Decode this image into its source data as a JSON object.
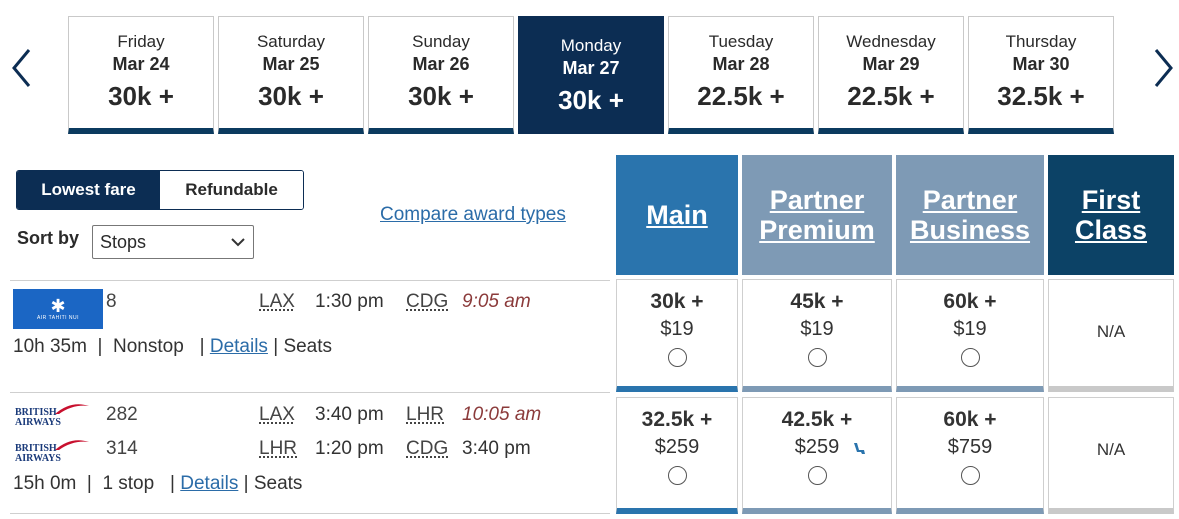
{
  "dates": [
    {
      "dow": "Friday",
      "date": "Mar 24",
      "points": "30k +"
    },
    {
      "dow": "Saturday",
      "date": "Mar 25",
      "points": "30k +"
    },
    {
      "dow": "Sunday",
      "date": "Mar 26",
      "points": "30k +"
    },
    {
      "dow": "Monday",
      "date": "Mar 27",
      "points": "30k +"
    },
    {
      "dow": "Tuesday",
      "date": "Mar 28",
      "points": "22.5k +"
    },
    {
      "dow": "Wednesday",
      "date": "Mar 29",
      "points": "22.5k +"
    },
    {
      "dow": "Thursday",
      "date": "Mar 30",
      "points": "32.5k +"
    }
  ],
  "selected_index": 3,
  "toggle": {
    "lowest": "Lowest fare",
    "refundable": "Refundable"
  },
  "sort": {
    "label": "Sort by",
    "value": "Stops"
  },
  "compare_link": "Compare award types",
  "cabins": {
    "main": "Main",
    "partner_premium": [
      "Partner",
      "Premium"
    ],
    "partner_business": [
      "Partner",
      "Business"
    ],
    "first_class": [
      "First",
      "Class"
    ]
  },
  "flights": [
    {
      "airline": "Air Tahiti Nui",
      "logo_text": "AIR TAHITI NUI",
      "segments": [
        {
          "flight": "8",
          "from": "LAX",
          "dep": "1:30 pm",
          "to": "CDG",
          "arr": "9:05 am"
        }
      ],
      "duration": "10h 35m",
      "stops": "Nonstop",
      "details": "Details",
      "seats": "Seats",
      "fares": {
        "main": {
          "points": "30k +",
          "cash": "$19"
        },
        "partner_premium": {
          "points": "45k +",
          "cash": "$19"
        },
        "partner_business": {
          "points": "60k +",
          "cash": "$19"
        },
        "first_class": {
          "na": "N/A"
        }
      }
    },
    {
      "airline": "British Airways",
      "logo_text": [
        "BRITISH",
        "AIRWAYS"
      ],
      "segments": [
        {
          "flight": "282",
          "from": "LAX",
          "dep": "3:40 pm",
          "to": "LHR",
          "arr": "10:05 am"
        },
        {
          "flight": "314",
          "from": "LHR",
          "dep": "1:20 pm",
          "to": "CDG",
          "arr": "3:40 pm"
        }
      ],
      "duration": "15h 0m",
      "stops": "1 stop",
      "details": "Details",
      "seats": "Seats",
      "fares": {
        "main": {
          "points": "32.5k +",
          "cash": "$259"
        },
        "partner_premium": {
          "points": "42.5k +",
          "cash": "$259"
        },
        "partner_business": {
          "points": "60k +",
          "cash": "$759"
        },
        "first_class": {
          "na": "N/A"
        }
      }
    }
  ],
  "colors": {
    "navy": "#0c2d53",
    "main_blue": "#2a74ad",
    "partner_gray": "#7e9ab5",
    "first_navy": "#0c4266",
    "link": "#2b6ca8",
    "arrival_red": "#8b3a3a"
  }
}
